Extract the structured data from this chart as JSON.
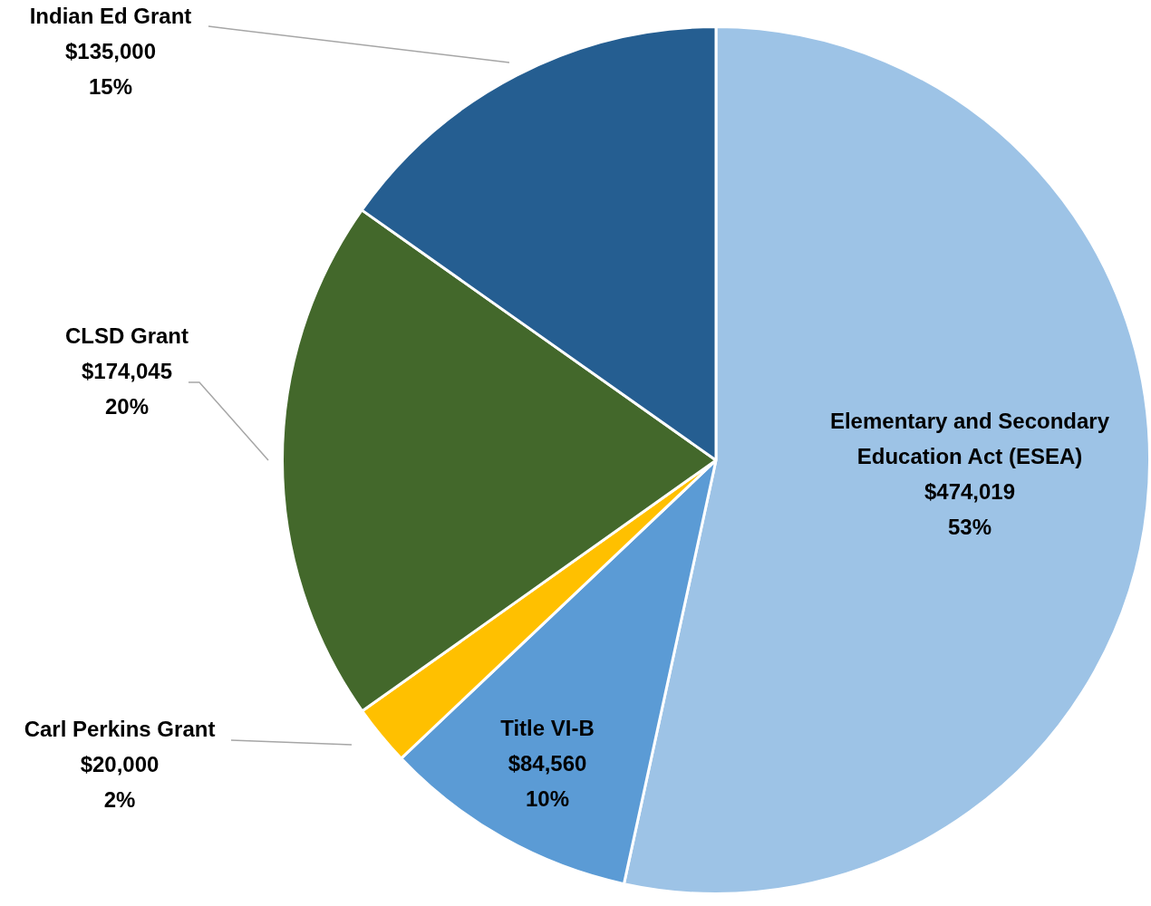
{
  "chart_data": {
    "type": "pie",
    "categories": [
      "Elementary and Secondary Education Act (ESEA)",
      "Title VI-B",
      "Carl Perkins Grant",
      "CLSD Grant",
      "Indian Ed Grant"
    ],
    "values": [
      474019,
      84560,
      20000,
      174045,
      135000
    ],
    "value_labels": [
      "$474,019\n53%",
      "$84,560\n10%",
      "$20,000\n2%",
      "$174,045\n20%",
      "$135,000\n15%"
    ],
    "colors": [
      "#9dc3e6",
      "#5b9bd5",
      "#ffc000",
      "#43682b",
      "#255e91"
    ],
    "legend": false
  }
}
